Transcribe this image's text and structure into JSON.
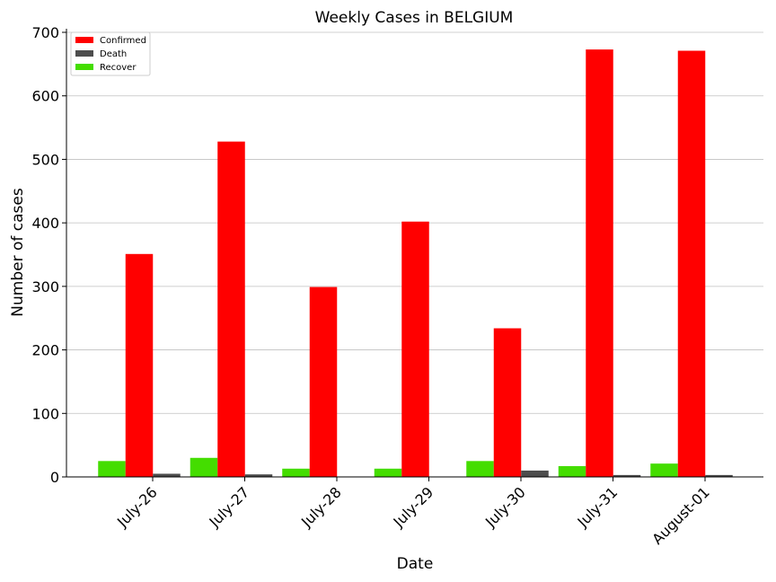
{
  "chart_data": {
    "type": "bar",
    "title": "Weekly Cases in BELGIUM",
    "xlabel": "Date",
    "ylabel": "Number of cases",
    "categories": [
      "July-26",
      "July-27",
      "July-28",
      "July-29",
      "July-30",
      "July-31",
      "August-01"
    ],
    "series": [
      {
        "name": "Recover",
        "color": "#44dd00",
        "values": [
          25,
          30,
          13,
          13,
          25,
          17,
          21
        ]
      },
      {
        "name": "Confirmed",
        "color": "#ff0000",
        "values": [
          351,
          528,
          299,
          402,
          234,
          673,
          671
        ]
      },
      {
        "name": "Death",
        "color": "#4d4d4d",
        "values": [
          5,
          4,
          0,
          0,
          10,
          3,
          3
        ]
      }
    ],
    "legend_order": [
      "Confirmed",
      "Death",
      "Recover"
    ],
    "legend_position": "top-left",
    "ylim": [
      0,
      700
    ],
    "yticks": [
      "0",
      "100",
      "200",
      "300",
      "400",
      "500",
      "600",
      "700"
    ],
    "grid": "y",
    "axis_color": "#000000",
    "grid_color": "#c0c0c0"
  }
}
